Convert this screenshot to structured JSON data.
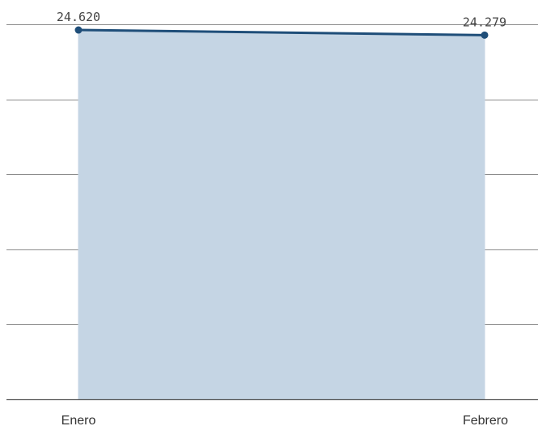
{
  "chart_data": {
    "type": "area",
    "categories": [
      "Enero",
      "Febrero"
    ],
    "series": [
      {
        "values": [
          24620,
          24279
        ],
        "data_labels": [
          "24.620",
          "24.279"
        ]
      }
    ],
    "title": "",
    "xlabel": "",
    "ylabel": "",
    "ylim": [
      0,
      25000
    ],
    "grid": true,
    "legend": "none",
    "colors": {
      "line": "#1f4e79",
      "area": "#c5d5e4",
      "grid": "#8c8c8c",
      "axis": "#555555"
    }
  }
}
